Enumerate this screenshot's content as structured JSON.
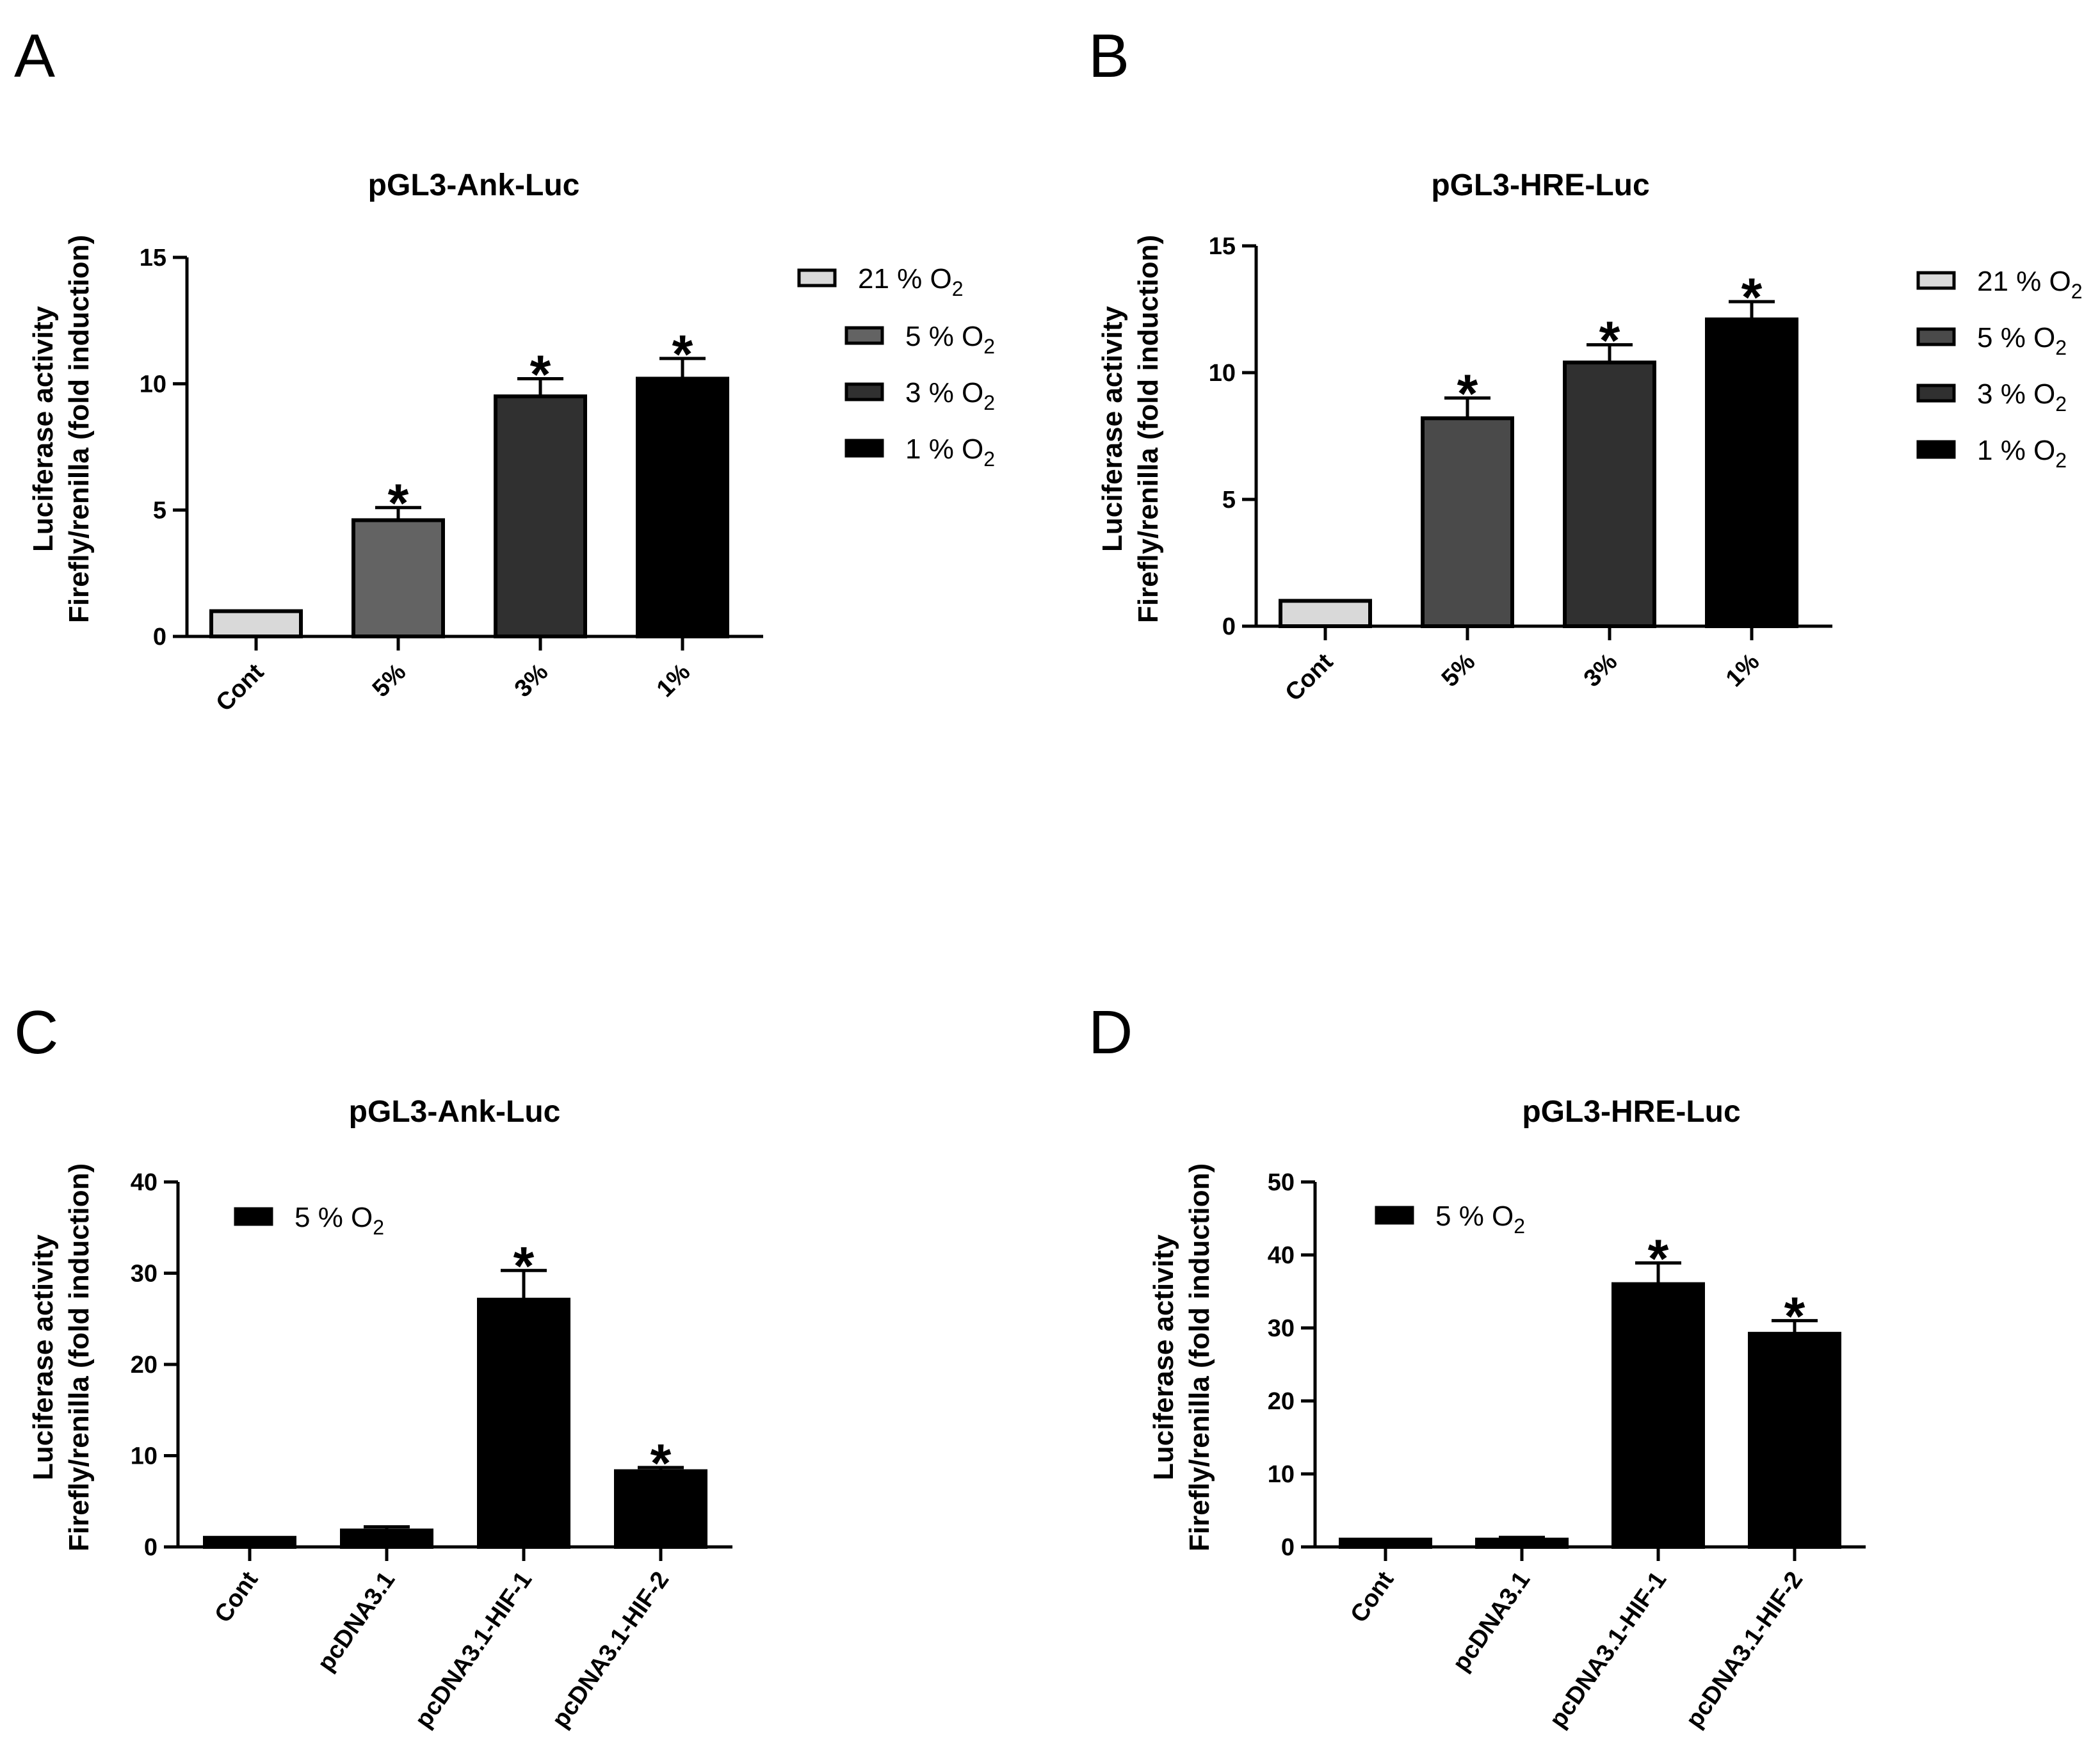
{
  "figure": {
    "panels": [
      "A",
      "B",
      "C",
      "D"
    ]
  },
  "chart_data": [
    {
      "panel": "A",
      "type": "bar",
      "title": "pGL3-Ank-Luc",
      "ylabel_lines": [
        "Luciferase activity",
        "Firefly/renilla (fold induction)"
      ],
      "xlabel": "",
      "categories": [
        "Cont",
        "5%",
        "3%",
        "1%"
      ],
      "values": [
        1.0,
        4.6,
        9.5,
        10.2
      ],
      "errors": [
        0.0,
        0.5,
        0.7,
        0.8
      ],
      "significant": [
        false,
        true,
        true,
        true
      ],
      "significance_marker": "*",
      "ylim": [
        0,
        15
      ],
      "yticks": [
        0,
        5,
        10,
        15
      ],
      "fill_colors": [
        "#d9d9d9",
        "#636363",
        "#303030",
        "#000000"
      ],
      "legend": {
        "placement": "right",
        "entries": [
          {
            "label": "21 % O",
            "sub": "2",
            "color": "#d9d9d9"
          },
          {
            "label": "5 % O",
            "sub": "2",
            "color": "#636363"
          },
          {
            "label": "3 % O",
            "sub": "2",
            "color": "#303030"
          },
          {
            "label": "1 % O",
            "sub": "2",
            "color": "#000000"
          }
        ]
      }
    },
    {
      "panel": "B",
      "type": "bar",
      "title": "pGL3-HRE-Luc",
      "ylabel_lines": [
        "Luciferase activity",
        "Firefly/renilla (fold induction)"
      ],
      "xlabel": "",
      "categories": [
        "Cont",
        "5%",
        "3%",
        "1%"
      ],
      "values": [
        1.0,
        8.2,
        10.4,
        12.1
      ],
      "errors": [
        0.0,
        0.8,
        0.7,
        0.7
      ],
      "significant": [
        false,
        true,
        true,
        true
      ],
      "significance_marker": "*",
      "ylim": [
        0,
        15
      ],
      "yticks": [
        0,
        5,
        10,
        15
      ],
      "fill_colors": [
        "#d9d9d9",
        "#4a4a4a",
        "#303030",
        "#000000"
      ],
      "legend": {
        "placement": "right",
        "entries": [
          {
            "label": "21 % O",
            "sub": "2",
            "color": "#d9d9d9"
          },
          {
            "label": "5 % O",
            "sub": "2",
            "color": "#4a4a4a"
          },
          {
            "label": "3 % O",
            "sub": "2",
            "color": "#303030"
          },
          {
            "label": "1 % O",
            "sub": "2",
            "color": "#000000"
          }
        ]
      }
    },
    {
      "panel": "C",
      "type": "bar",
      "title": "pGL3-Ank-Luc",
      "ylabel_lines": [
        "Luciferase activity",
        "Firefly/renilla (fold induction)"
      ],
      "xlabel": "",
      "categories": [
        "Cont",
        "pcDNA3.1",
        "pcDNA3.1-HIF-1",
        "pcDNA3.1-HIF-2"
      ],
      "values": [
        1.0,
        1.8,
        27.1,
        8.3
      ],
      "errors": [
        0.0,
        0.4,
        3.2,
        0.4
      ],
      "significant": [
        false,
        false,
        true,
        true
      ],
      "significance_marker": "*",
      "ylim": [
        0,
        40
      ],
      "yticks": [
        0,
        10,
        20,
        30,
        40
      ],
      "fill_colors": [
        "#000000",
        "#000000",
        "#000000",
        "#000000"
      ],
      "legend": {
        "placement": "top-left",
        "entries": [
          {
            "label": "5 % O",
            "sub": "2",
            "color": "#000000"
          }
        ]
      }
    },
    {
      "panel": "D",
      "type": "bar",
      "title": "pGL3-HRE-Luc",
      "ylabel_lines": [
        "Luciferase activity",
        "Firefly/renilla (fold induction)"
      ],
      "xlabel": "",
      "categories": [
        "Cont",
        "pcDNA3.1",
        "pcDNA3.1-HIF-1",
        "pcDNA3.1-HIF-2"
      ],
      "values": [
        1.0,
        1.0,
        36.0,
        29.2
      ],
      "errors": [
        0.0,
        0.3,
        2.9,
        1.8
      ],
      "significant": [
        false,
        false,
        true,
        true
      ],
      "significance_marker": "*",
      "ylim": [
        0,
        50
      ],
      "yticks": [
        0,
        10,
        20,
        30,
        40,
        50
      ],
      "fill_colors": [
        "#000000",
        "#000000",
        "#000000",
        "#000000"
      ],
      "legend": {
        "placement": "top-left",
        "entries": [
          {
            "label": "5 % O",
            "sub": "2",
            "color": "#000000"
          }
        ]
      }
    }
  ]
}
